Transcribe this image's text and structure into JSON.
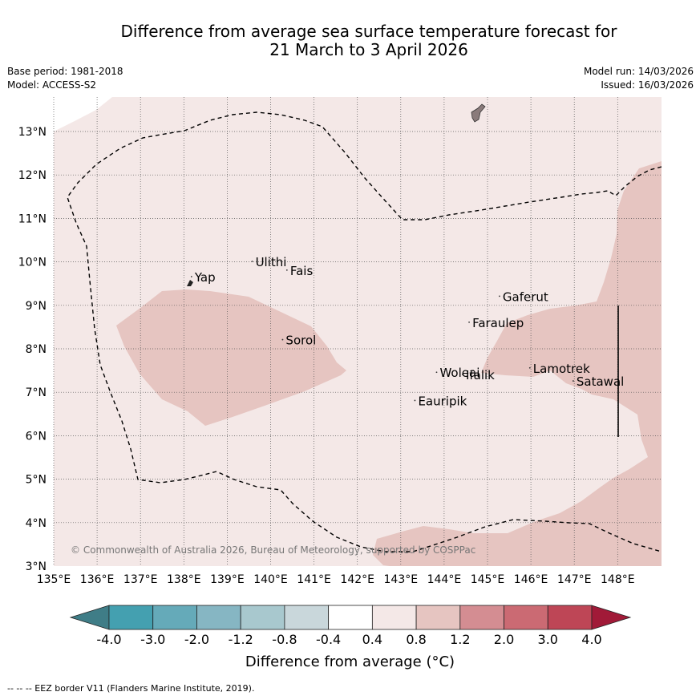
{
  "title": {
    "line1": "Difference from average sea surface temperature forecast for",
    "line2": "21 March to 3 April 2026"
  },
  "meta": {
    "base_period": "Base period: 1981-2018",
    "model": "Model: ACCESS-S2",
    "model_run": "Model run: 14/03/2026",
    "issued": "Issued: 16/03/2026"
  },
  "map": {
    "extent": {
      "lon_min": 135,
      "lon_max": 149,
      "lat_min": 3,
      "lat_max": 13.8
    },
    "lon_ticks": [
      "135°E",
      "136°E",
      "137°E",
      "138°E",
      "139°E",
      "140°E",
      "141°E",
      "142°E",
      "143°E",
      "144°E",
      "145°E",
      "146°E",
      "147°E",
      "148°E"
    ],
    "lat_ticks": [
      "3°N",
      "4°N",
      "5°N",
      "6°N",
      "7°N",
      "8°N",
      "9°N",
      "10°N",
      "11°N",
      "12°N",
      "13°N"
    ],
    "copyright": "© Commonwealth of Australia 2026, Bureau of Meteorology, supported by COSPPac",
    "places": [
      {
        "name": "Yap",
        "lon": 138.25,
        "lat": 9.55
      },
      {
        "name": "Ulithi",
        "lon": 139.65,
        "lat": 9.9
      },
      {
        "name": "Fais",
        "lon": 140.45,
        "lat": 9.7
      },
      {
        "name": "Sorol",
        "lon": 140.35,
        "lat": 8.1
      },
      {
        "name": "Gaferut",
        "lon": 145.35,
        "lat": 9.1
      },
      {
        "name": "Faraulep",
        "lon": 144.65,
        "lat": 8.5
      },
      {
        "name": "Woleai",
        "lon": 143.9,
        "lat": 7.35
      },
      {
        "name": "Ifalik",
        "lon": 144.5,
        "lat": 7.3
      },
      {
        "name": "Lamotrek",
        "lon": 146.05,
        "lat": 7.45
      },
      {
        "name": "Satawal",
        "lon": 147.05,
        "lat": 7.15
      },
      {
        "name": "Eauripik",
        "lon": 143.4,
        "lat": 6.7
      }
    ],
    "colors": {
      "anom_0_4_to_0_8": "#f4e8e7",
      "anom_0_8_to_1_2": "#e6c5c1",
      "land": "#8a7b7b",
      "eez": "#000000"
    }
  },
  "colorbar": {
    "title": "Difference from average (°C)",
    "tick_labels": [
      "-4.0",
      "-3.0",
      "-2.0",
      "-1.2",
      "-0.8",
      "-0.4",
      "0.4",
      "0.8",
      "1.2",
      "2.0",
      "3.0",
      "4.0"
    ],
    "bin_colors": [
      "#44a0b0",
      "#65aab9",
      "#86b6c3",
      "#a8c8ce",
      "#c9d7db",
      "#ffffff",
      "#f4e8e7",
      "#e6c5c1",
      "#d48d92",
      "#cb6a73",
      "#be4656"
    ],
    "under_color": "#3f7d87",
    "over_color": "#a11a38"
  },
  "footer": "--  --  -- EEZ border V11 (Flanders Marine Institute, 2019)."
}
